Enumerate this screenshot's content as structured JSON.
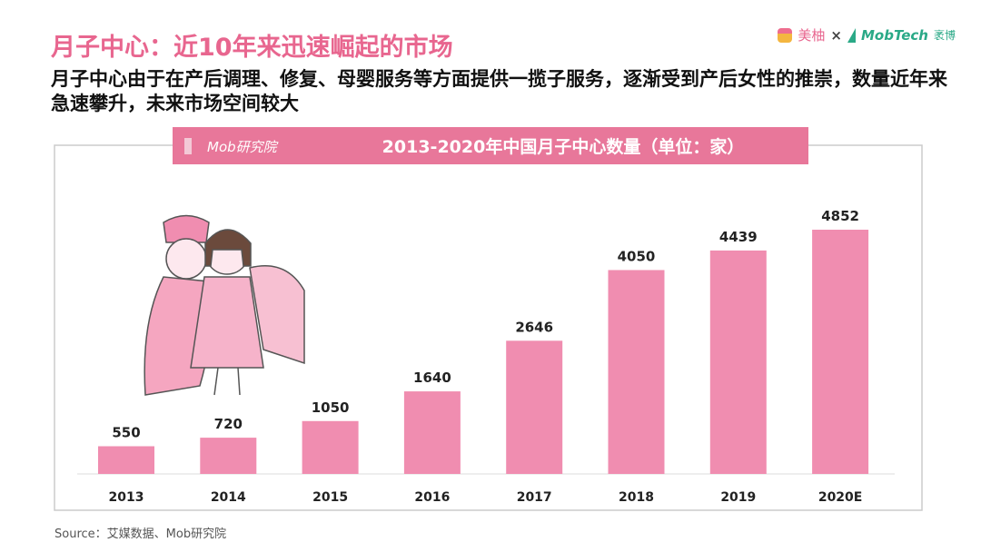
{
  "header": {
    "title": "月子中心：近10年来迅速崛起的市场",
    "subtitle": "月子中心由于在产后调理、修复、母婴服务等方面提供一揽子服务，逐渐受到产后女性的推崇，数量近年来急速攀升，未来市场空间较大",
    "logo": {
      "meiyou": "美柚",
      "times": "×",
      "mobtech": "MobTech",
      "mobtech_cn": "袤博"
    }
  },
  "chart_header": {
    "brand": "Mob研究院"
  },
  "chart_data": {
    "type": "bar",
    "title": "2013-2020年中国月子中心数量（单位：家）",
    "categories": [
      "2013",
      "2014",
      "2015",
      "2016",
      "2017",
      "2018",
      "2019",
      "2020E"
    ],
    "values": [
      550,
      720,
      1050,
      1640,
      2646,
      4050,
      4439,
      4852
    ],
    "bar_color": "#f08db0",
    "header_color": "#e8779a",
    "grid": false,
    "legend": "none"
  },
  "footer": {
    "source": "Source：艾媒数据、Mob研究院"
  }
}
